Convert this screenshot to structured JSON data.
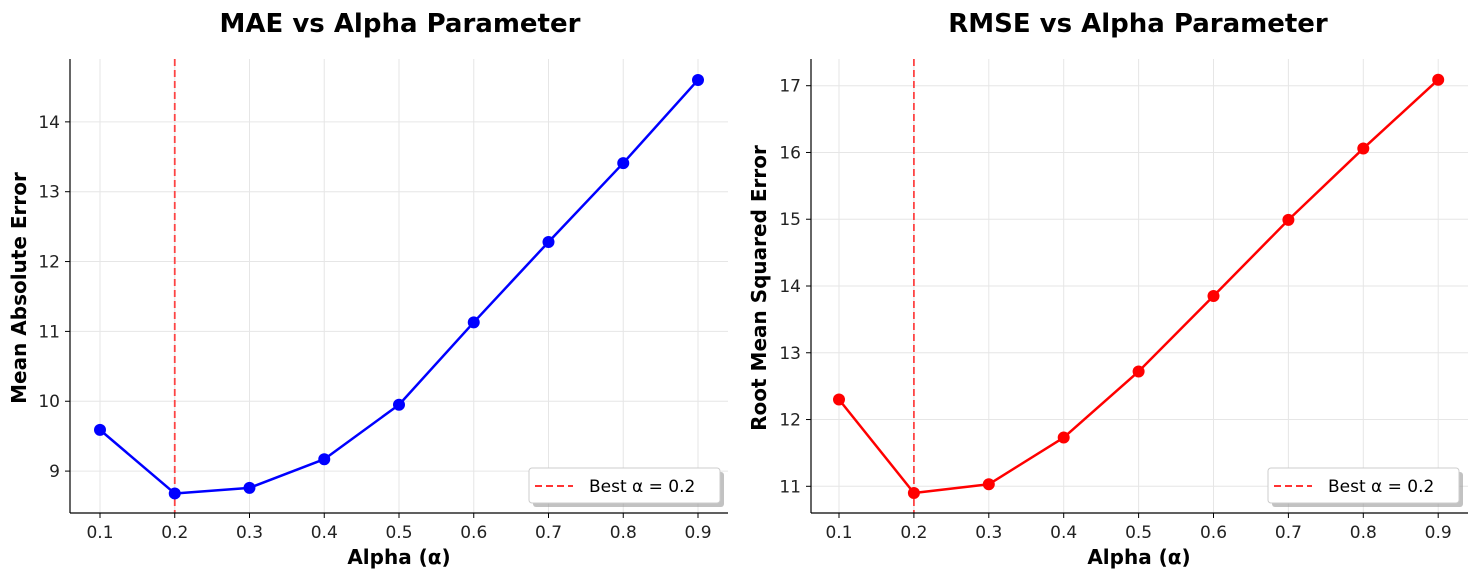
{
  "chart_data": [
    {
      "type": "line",
      "title": "MAE vs Alpha Parameter",
      "xlabel": "Alpha (α)",
      "ylabel": "Mean Absolute Error",
      "x": [
        0.1,
        0.2,
        0.3,
        0.4,
        0.5,
        0.6,
        0.7,
        0.8,
        0.9
      ],
      "x_ticks": [
        "0.1",
        "0.2",
        "0.3",
        "0.4",
        "0.5",
        "0.6",
        "0.7",
        "0.8",
        "0.9"
      ],
      "y_ticks": [
        "9",
        "10",
        "11",
        "12",
        "13",
        "14"
      ],
      "ylim": [
        8.4,
        14.9
      ],
      "series": [
        {
          "name": "MAE",
          "color": "#0000ff",
          "values": [
            9.59,
            8.68,
            8.76,
            9.17,
            9.95,
            11.13,
            12.28,
            13.41,
            14.6
          ]
        }
      ],
      "annotations": [
        {
          "type": "vline",
          "x": 0.2,
          "color": "#ff3333",
          "style": "dashed",
          "label": "Best α = 0.2"
        }
      ],
      "legend": {
        "position": "lower right",
        "entries": [
          "Best α = 0.2"
        ]
      },
      "grid": true
    },
    {
      "type": "line",
      "title": "RMSE vs Alpha Parameter",
      "xlabel": "Alpha (α)",
      "ylabel": "Root Mean Squared Error",
      "x": [
        0.1,
        0.2,
        0.3,
        0.4,
        0.5,
        0.6,
        0.7,
        0.8,
        0.9
      ],
      "x_ticks": [
        "0.1",
        "0.2",
        "0.3",
        "0.4",
        "0.5",
        "0.6",
        "0.7",
        "0.8",
        "0.9"
      ],
      "y_ticks": [
        "11",
        "12",
        "13",
        "14",
        "15",
        "16",
        "17"
      ],
      "ylim": [
        10.6,
        17.4
      ],
      "series": [
        {
          "name": "RMSE",
          "color": "#ff0000",
          "values": [
            12.3,
            10.9,
            11.03,
            11.73,
            12.72,
            13.85,
            14.99,
            16.06,
            17.09
          ]
        }
      ],
      "annotations": [
        {
          "type": "vline",
          "x": 0.2,
          "color": "#ff3333",
          "style": "dashed",
          "label": "Best α = 0.2"
        }
      ],
      "legend": {
        "position": "lower right",
        "entries": [
          "Best α = 0.2"
        ]
      },
      "grid": true
    }
  ],
  "charts": [
    {
      "title": "MAE vs Alpha Parameter",
      "xlabel": "Alpha (α)",
      "ylabel": "Mean Absolute Error",
      "legend_label": "Best α = 0.2"
    },
    {
      "title": "RMSE vs Alpha Parameter",
      "xlabel": "Alpha (α)",
      "ylabel": "Root Mean Squared Error",
      "legend_label": "Best α = 0.2"
    }
  ]
}
